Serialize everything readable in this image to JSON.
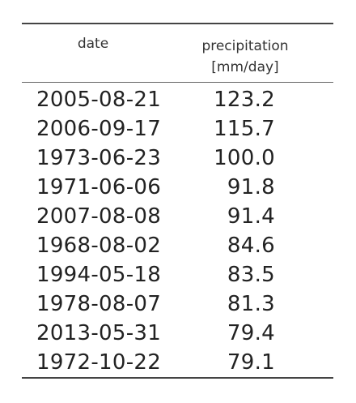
{
  "table": {
    "headers": {
      "date": "date",
      "precipitation_line1": "precipitation",
      "precipitation_line2": "[mm/day]"
    },
    "rows": [
      {
        "date": "2005-08-21",
        "precipitation": "123.2"
      },
      {
        "date": "2006-09-17",
        "precipitation": "115.7"
      },
      {
        "date": "1973-06-23",
        "precipitation": "100.0"
      },
      {
        "date": "1971-06-06",
        "precipitation": "91.8"
      },
      {
        "date": "2007-08-08",
        "precipitation": "91.4"
      },
      {
        "date": "1968-08-02",
        "precipitation": "84.6"
      },
      {
        "date": "1994-05-18",
        "precipitation": "83.5"
      },
      {
        "date": "1978-08-07",
        "precipitation": "81.3"
      },
      {
        "date": "2013-05-31",
        "precipitation": "79.4"
      },
      {
        "date": "1972-10-22",
        "precipitation": "79.1"
      }
    ]
  }
}
